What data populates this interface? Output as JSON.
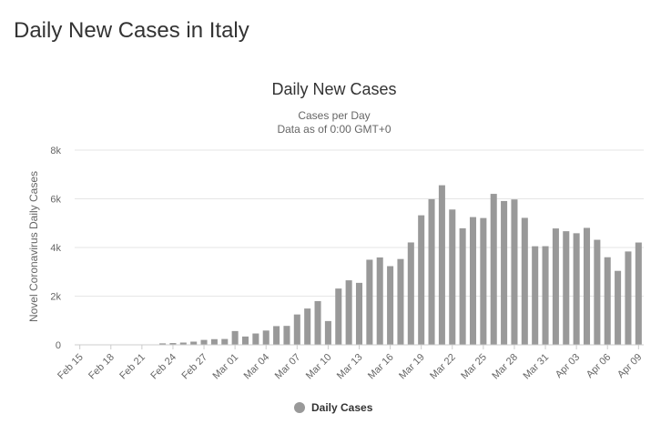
{
  "page": {
    "title": "Daily New Cases in Italy"
  },
  "chart_data": {
    "type": "bar",
    "title": "Daily New Cases",
    "subtitle_lines": [
      "Cases per Day",
      "Data as of 0:00 GMT+0"
    ],
    "xlabel": "",
    "ylabel": "Novel Coronavirus Daily Cases",
    "ylim": [
      0,
      8000
    ],
    "yticks": [
      0,
      2000,
      4000,
      6000,
      8000
    ],
    "ytick_labels": [
      "0",
      "2k",
      "4k",
      "6k",
      "8k"
    ],
    "grid": true,
    "legend": {
      "placement": "bottom-center"
    },
    "categories": [
      "Feb 15",
      "Feb 16",
      "Feb 17",
      "Feb 18",
      "Feb 19",
      "Feb 20",
      "Feb 21",
      "Feb 22",
      "Feb 23",
      "Feb 24",
      "Feb 25",
      "Feb 26",
      "Feb 27",
      "Feb 28",
      "Feb 29",
      "Mar 01",
      "Mar 02",
      "Mar 03",
      "Mar 04",
      "Mar 05",
      "Mar 06",
      "Mar 07",
      "Mar 08",
      "Mar 09",
      "Mar 10",
      "Mar 11",
      "Mar 12",
      "Mar 13",
      "Mar 14",
      "Mar 15",
      "Mar 16",
      "Mar 17",
      "Mar 18",
      "Mar 19",
      "Mar 20",
      "Mar 21",
      "Mar 22",
      "Mar 23",
      "Mar 24",
      "Mar 25",
      "Mar 26",
      "Mar 27",
      "Mar 28",
      "Mar 29",
      "Mar 30",
      "Mar 31",
      "Apr 01",
      "Apr 02",
      "Apr 03",
      "Apr 04",
      "Apr 05",
      "Apr 06",
      "Apr 07",
      "Apr 08",
      "Apr 09"
    ],
    "x_tick_labels": [
      "Feb 15",
      "Feb 18",
      "Feb 21",
      "Feb 24",
      "Feb 27",
      "Mar 01",
      "Mar 04",
      "Mar 07",
      "Mar 10",
      "Mar 13",
      "Mar 16",
      "Mar 19",
      "Mar 22",
      "Mar 25",
      "Mar 28",
      "Mar 31",
      "Apr 03",
      "Apr 06",
      "Apr 09"
    ],
    "series": [
      {
        "name": "Daily Cases",
        "color": "#999999",
        "values": [
          0,
          0,
          0,
          0,
          0,
          0,
          0,
          17,
          60,
          73,
          93,
          131,
          202,
          233,
          240,
          566,
          342,
          466,
          587,
          769,
          778,
          1247,
          1492,
          1797,
          977,
          2313,
          2651,
          2547,
          3497,
          3590,
          3233,
          3526,
          4207,
          5322,
          5986,
          6557,
          5560,
          4789,
          5249,
          5210,
          6203,
          5909,
          5974,
          5217,
          4050,
          4053,
          4782,
          4668,
          4585,
          4805,
          4316,
          3599,
          3039,
          3836,
          4204
        ]
      }
    ]
  }
}
